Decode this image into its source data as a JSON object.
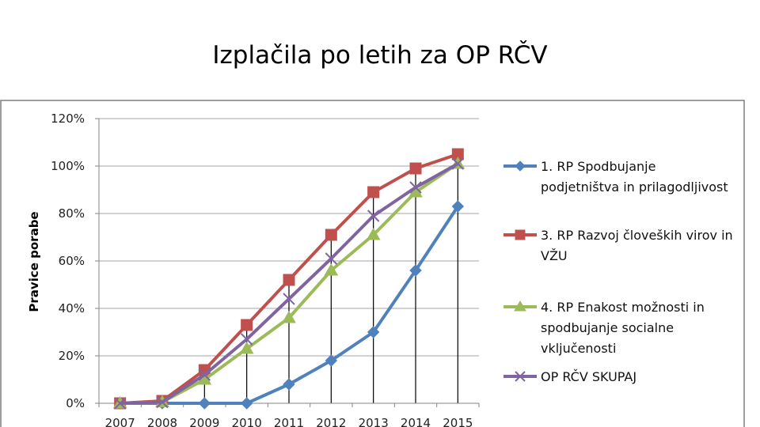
{
  "slide": {
    "title": "Izplačila po letih za OP RČV"
  },
  "chart_data": {
    "type": "line",
    "title": "",
    "xlabel": "",
    "ylabel": "Pravice porabe",
    "categories": [
      "2007",
      "2008",
      "2009",
      "2010",
      "2011",
      "2012",
      "2013",
      "2014",
      "2015"
    ],
    "ylim": [
      0,
      120
    ],
    "yticks": [
      "0%",
      "20%",
      "40%",
      "60%",
      "80%",
      "100%",
      "120%"
    ],
    "ytick_values": [
      0,
      20,
      40,
      60,
      80,
      100,
      120
    ],
    "grid": true,
    "legend_position": "right",
    "series": [
      {
        "name": "1. RP Spodbujanje podjetništva in prilagodljivost",
        "legend_lines": [
          "1. RP Spodbujanje",
          "podjetništva in prilagodljivost"
        ],
        "color": "#4F81BD",
        "marker": "diamond",
        "values": [
          0,
          0,
          0,
          0,
          8,
          18,
          30,
          56,
          83
        ]
      },
      {
        "name": "3. RP Razvoj človeških virov in VŽU",
        "legend_lines": [
          "3. RP Razvoj človeških virov in",
          "VŽU"
        ],
        "color": "#C0504D",
        "marker": "square",
        "values": [
          0,
          1,
          14,
          33,
          52,
          71,
          89,
          99,
          105
        ]
      },
      {
        "name": "4. RP Enakost možnosti in spodbujanje socialne vključenosti",
        "legend_lines": [
          "4. RP Enakost možnosti in",
          "spodbujanje socialne",
          "vključenosti"
        ],
        "color": "#9BBB59",
        "marker": "triangle",
        "values": [
          0,
          0.5,
          10,
          23,
          36,
          56,
          71,
          89,
          101
        ]
      },
      {
        "name": "OP RČV SKUPAJ",
        "legend_lines": [
          "OP RČV SKUPAJ"
        ],
        "color": "#8064A2",
        "marker": "x",
        "values": [
          0,
          0.5,
          12,
          27,
          44,
          61,
          79,
          91,
          101
        ]
      }
    ]
  }
}
